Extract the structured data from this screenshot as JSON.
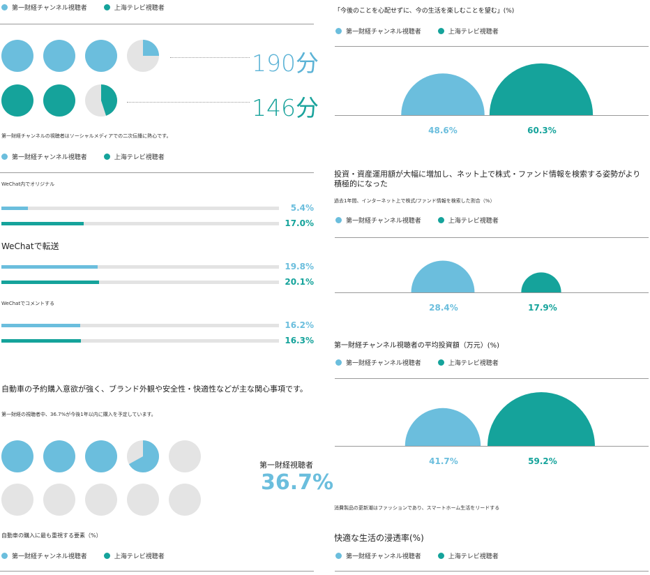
{
  "legend": {
    "series_a": "第一財経チャンネル視聴者",
    "series_b": "上海テレビ視聴者",
    "color_a": "#6bbedd",
    "color_b": "#15a39b",
    "color_empty": "#e4e4e4"
  },
  "left": {
    "viewing": {
      "value_a": "190分",
      "value_b": "146分",
      "note": "第一財経チャンネルの視聴者はソーシャルメディアでの二次伝播に熱心です。"
    },
    "social": {
      "rows": [
        {
          "label": "WeChat内でオリジナル",
          "a": "5.4%",
          "b": "17.0%"
        },
        {
          "label": "WeChatで転送",
          "a": "19.8%",
          "b": "20.1%"
        },
        {
          "label": "WeChatでコメントする",
          "a": "16.2%",
          "b": "16.3%"
        }
      ]
    },
    "auto": {
      "heading": "自動車の予約購入意欲が強く、ブランド外観や安全性・快適性などが主な関心事項です。",
      "note": "第一財経の視聴者中、36.7%が今後1年以内に購入を予定しています。",
      "label": "第一財経視聴者",
      "value": "36.7%",
      "factors": "自動車の購入に最も重視する要素（%）"
    }
  },
  "right": {
    "q1": {
      "title": "「今後のことを心配せずに、今の生活を楽しむことを望む」(%)",
      "a": "48.6%",
      "b": "60.3%"
    },
    "q2": {
      "title": "投資・資産運用額が大幅に増加し、ネット上で株式・ファンド情報を検索する姿勢がより",
      "title2": "積極的になった",
      "note": "過去1年間、インターネット上で株式/ファンド情報を検索した割合（%）",
      "a": "28.4%",
      "b": "17.9%"
    },
    "q3": {
      "title": "第一財経チャンネル視聴者の平均投資額（万元）(%)",
      "a": "41.7%",
      "b": "59.2%"
    },
    "q4": {
      "note": "消費製品の更新潮はファッションであり、スマートホーム生活をリードする",
      "title": "快適な生活の浸透率(%)"
    }
  },
  "chart_data": [
    {
      "type": "pie",
      "title": "",
      "series": [
        {
          "name": "第一財経チャンネル視聴者",
          "values": [
            190
          ],
          "unit": "分",
          "pie_full_units": 3.25
        },
        {
          "name": "上海テレビ視聴者",
          "values": [
            146
          ],
          "unit": "分",
          "pie_full_units": 2.45
        }
      ]
    },
    {
      "type": "bar",
      "categories": [
        "WeChat内でオリジナル",
        "WeChatで転送",
        "WeChatでコメントする"
      ],
      "series": [
        {
          "name": "第一財経チャンネル視聴者",
          "values": [
            5.4,
            19.8,
            16.2
          ]
        },
        {
          "name": "上海テレビ視聴者",
          "values": [
            17.0,
            20.1,
            16.3
          ]
        }
      ]
    },
    {
      "type": "pie",
      "title": "第一財経視聴者",
      "series": [
        {
          "name": "第一財経視聴者",
          "values": [
            36.7
          ],
          "unit": "%",
          "pie_count": 10,
          "pie_full_units": 3.67
        }
      ]
    },
    {
      "type": "area",
      "title": "「今後のことを心配せずに、今の生活を楽しむことを望む」(%)",
      "categories": [
        "第一財経チャンネル視聴者",
        "上海テレビ視聴者"
      ],
      "values": [
        48.6,
        60.3
      ]
    },
    {
      "type": "area",
      "title": "過去1年間、インターネット上で株式/ファンド情報を検索した割合（%）",
      "categories": [
        "第一財経チャンネル視聴者",
        "上海テレビ視聴者"
      ],
      "values": [
        28.4,
        17.9
      ]
    },
    {
      "type": "area",
      "title": "第一財経チャンネル視聴者の平均投資額（万元）(%)",
      "categories": [
        "第一財経チャンネル視聴者",
        "上海テレビ視聴者"
      ],
      "values": [
        41.7,
        59.2
      ]
    }
  ]
}
